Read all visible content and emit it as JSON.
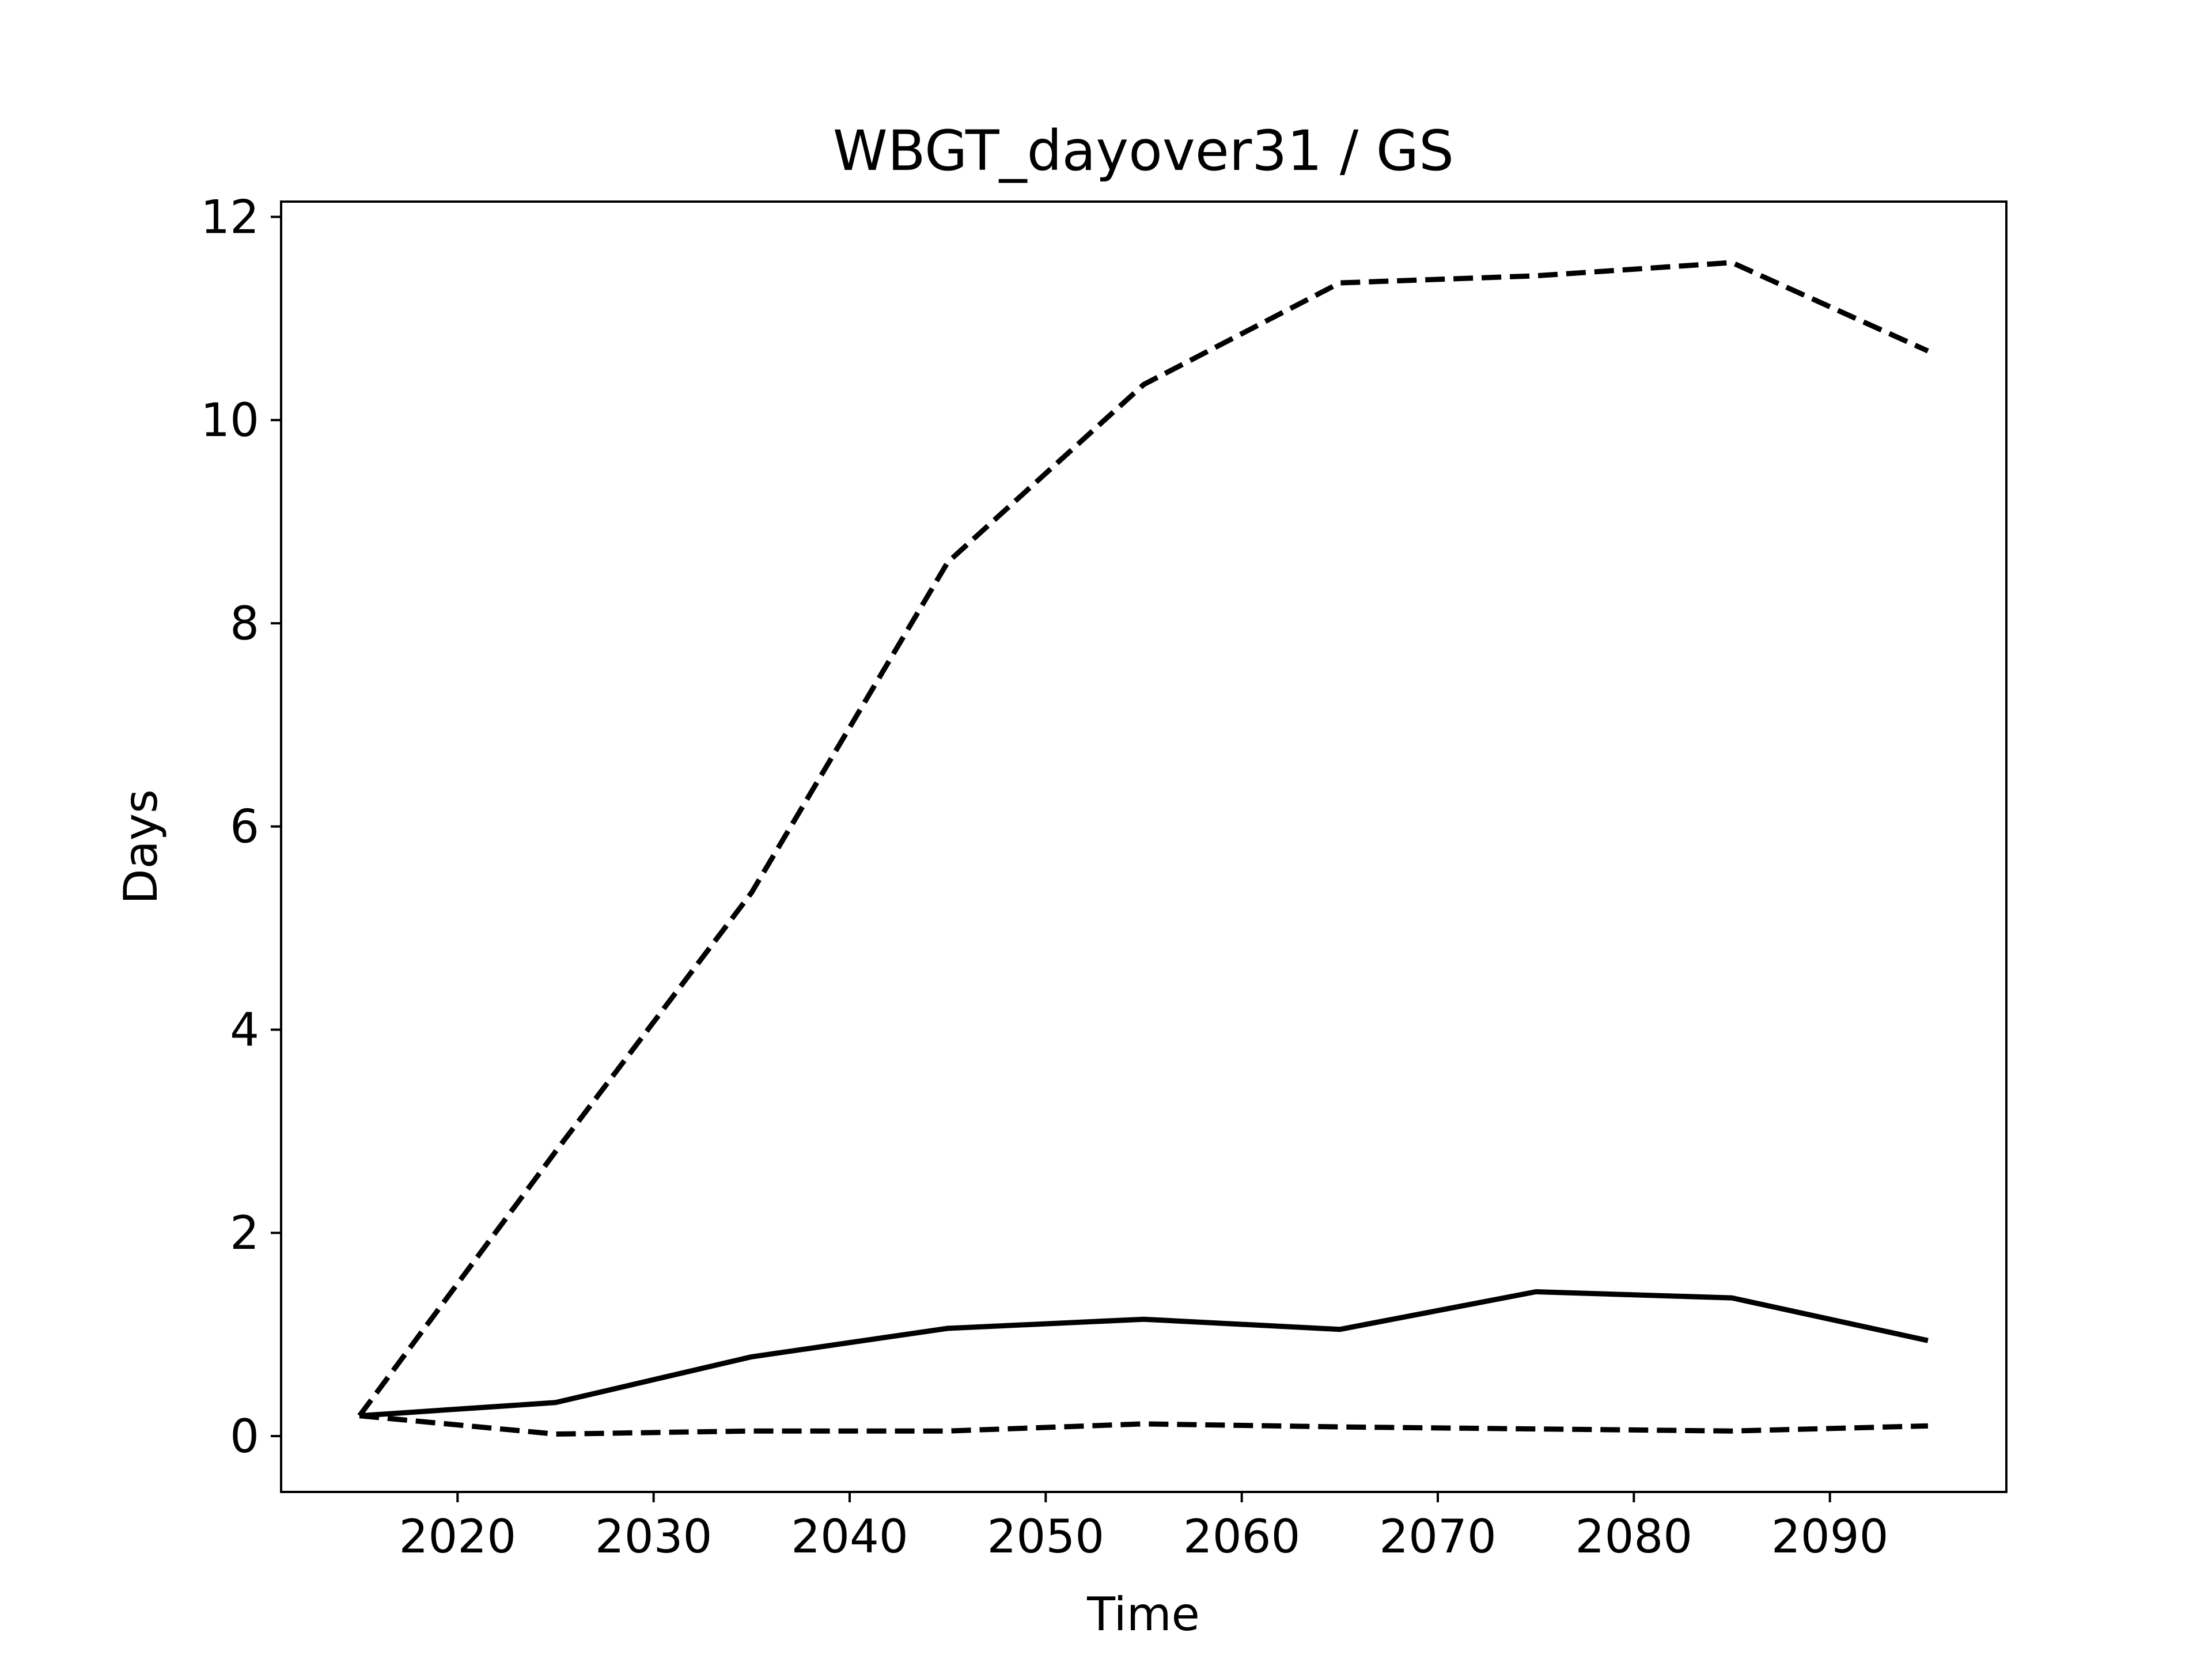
{
  "chart_data": {
    "type": "line",
    "title": "WBGT_dayover31 / GS",
    "xlabel": "Time",
    "ylabel": "Days",
    "xlim": [
      2011,
      2099
    ],
    "ylim": [
      -0.55,
      12.15
    ],
    "xticks": [
      2020,
      2030,
      2040,
      2050,
      2060,
      2070,
      2080,
      2090
    ],
    "yticks": [
      0,
      2,
      4,
      6,
      8,
      10,
      12
    ],
    "grid": false,
    "legend": "none",
    "x": [
      2015,
      2025,
      2035,
      2045,
      2055,
      2065,
      2075,
      2085,
      2095
    ],
    "series": [
      {
        "style": "dashed",
        "color": "#000000",
        "values": [
          0.2,
          2.8,
          5.35,
          8.6,
          10.35,
          11.35,
          11.42,
          11.55,
          10.68
        ]
      },
      {
        "style": "solid",
        "color": "#000000",
        "values": [
          0.2,
          0.33,
          0.78,
          1.06,
          1.15,
          1.05,
          1.42,
          1.36,
          0.94
        ]
      },
      {
        "style": "dashed",
        "color": "#000000",
        "values": [
          0.2,
          0.02,
          0.05,
          0.05,
          0.12,
          0.09,
          0.07,
          0.05,
          0.1
        ]
      }
    ]
  }
}
